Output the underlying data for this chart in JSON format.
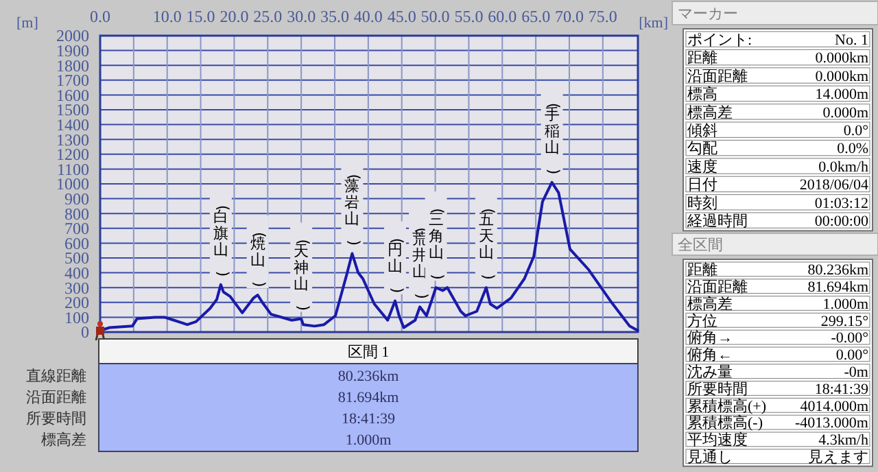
{
  "chart_data": [
    {
      "type": "line",
      "xlabel": "[km]",
      "ylabel": "[m]",
      "grid": true,
      "xlim": [
        0,
        80.236
      ],
      "ylim": [
        0,
        2000
      ],
      "xticks": [
        {
          "value": 0,
          "label": "0.0"
        },
        {
          "value": 5,
          "label": null
        },
        {
          "value": 10,
          "label": "10.0"
        },
        {
          "value": 15,
          "label": "15.0"
        },
        {
          "value": 20,
          "label": "20.0"
        },
        {
          "value": 25,
          "label": "25.0"
        },
        {
          "value": 30,
          "label": "30.0"
        },
        {
          "value": 35,
          "label": "35.0"
        },
        {
          "value": 40,
          "label": "40.0"
        },
        {
          "value": 45,
          "label": "45.0"
        },
        {
          "value": 50,
          "label": "50.0"
        },
        {
          "value": 55,
          "label": "55.0"
        },
        {
          "value": 60,
          "label": "60.0"
        },
        {
          "value": 65,
          "label": "65.0"
        },
        {
          "value": 70,
          "label": "70.0"
        },
        {
          "value": 75,
          "label": "75.0"
        }
      ],
      "yticks": [
        0,
        100,
        200,
        300,
        400,
        500,
        600,
        700,
        800,
        900,
        1000,
        1100,
        1200,
        1300,
        1400,
        1500,
        1600,
        1700,
        1800,
        1900,
        2000
      ],
      "x": [
        0,
        1.4,
        4.8,
        5.5,
        8.2,
        9.6,
        11,
        13,
        14.3,
        16.4,
        17.4,
        18,
        18.4,
        19.4,
        21.2,
        22.9,
        23.5,
        24.2,
        25.5,
        28.6,
        30,
        30.3,
        32,
        33.4,
        35.1,
        36.8,
        37.6,
        38.5,
        39.2,
        40.9,
        42.9,
        44,
        44.6,
        45.3,
        47,
        47.7,
        48.7,
        50.1,
        51.1,
        51.8,
        53.8,
        54.5,
        56.2,
        57.6,
        58.2,
        59.2,
        61.3,
        63.3,
        64.7,
        66,
        67.4,
        68.4,
        70.1,
        72.9,
        76.3,
        79,
        80.2
      ],
      "series": [
        {
          "color": "#1a1aa8",
          "values": [
            10,
            30,
            40,
            90,
            100,
            100,
            80,
            50,
            70,
            160,
            220,
            320,
            270,
            240,
            130,
            230,
            250,
            200,
            120,
            80,
            90,
            50,
            40,
            50,
            110,
            390,
            530,
            400,
            360,
            190,
            80,
            210,
            110,
            30,
            80,
            170,
            110,
            300,
            280,
            300,
            140,
            110,
            140,
            300,
            190,
            160,
            230,
            360,
            510,
            880,
            1010,
            940,
            560,
            420,
            200,
            40,
            10
          ]
        }
      ],
      "annotations": [
        {
          "text": "(白旗山)",
          "x": 18,
          "y": 320
        },
        {
          "text": "(焼山)",
          "x": 23.5,
          "y": 250
        },
        {
          "text": "(天神山)",
          "x": 30,
          "y": 90
        },
        {
          "text": "(藻岩山)",
          "x": 37.6,
          "y": 530
        },
        {
          "text": "(円山)",
          "x": 44,
          "y": 210
        },
        {
          "text": "(荒井山)",
          "x": 47.7,
          "y": 170
        },
        {
          "text": "(三角山)",
          "x": 50.1,
          "y": 300
        },
        {
          "text": "(五天山)",
          "x": 57.6,
          "y": 300
        },
        {
          "text": "(手稲山)",
          "x": 67.4,
          "y": 1010
        }
      ]
    },
    {
      "type": "other",
      "title": "マーカー",
      "annotations": [
        "ポイント:",
        "No. 1",
        "距離",
        "0.000km",
        "沿面距離",
        "0.000km",
        "標高",
        "14.000m",
        "標高差",
        "0.000m",
        "傾斜",
        "0.0°",
        "勾配",
        "0.0%",
        "速度",
        "0.0km/h",
        "日付",
        "2018/06/04",
        "時刻",
        "01:03:12",
        "経過時間",
        "00:00:00"
      ]
    },
    {
      "type": "other",
      "title": "全区間",
      "annotations": [
        "距離",
        "80.236km",
        "沿面距離",
        "81.694km",
        "標高差",
        "1.000m",
        "方位",
        "299.15°",
        "俯角→",
        "-0.00°",
        "俯角←",
        "0.00°",
        "沈み量",
        "-0m",
        "所要時間",
        "18:41:39",
        "累積標高(+)",
        "4014.000m",
        "累積標高(-)",
        "-4013.000m",
        "平均速度",
        "4.3km/h",
        "見通し",
        "見えます"
      ]
    },
    {
      "type": "other",
      "title": "区間 1",
      "annotations": [
        "直線距離",
        "80.236km",
        "沿面距離",
        "81.694km",
        "所要時間",
        "18:41:39",
        "標高差",
        "1.000m"
      ]
    }
  ]
}
